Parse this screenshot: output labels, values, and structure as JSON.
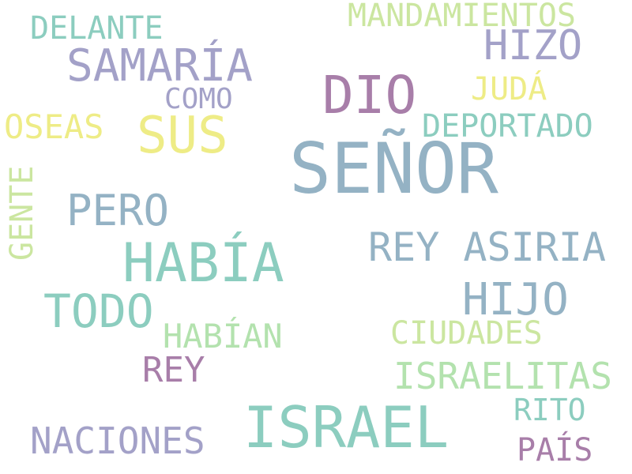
{
  "words": {
    "senor": "SEÑOR",
    "israel": "ISRAEL",
    "habia": "HABÍA",
    "dio": "DIO",
    "samaria": "SAMARÍA",
    "sus": "SUS",
    "todo": "TODO",
    "hijo": "HIJO",
    "pero": "PERO",
    "rey_asiria": "REY ASIRIA",
    "hizo": "HIZO",
    "nanciones": "NACIONES",
    "israelitas": "ISRAELITAS",
    "mandamientos": "MANDAMIENTOS",
    "delante": "DELANTE",
    "deportado": "DEPORTADO",
    "oseas": "OSEAS",
    "habian": "HABÍAN",
    "ciudades": "CIUDADES",
    "rey": "REY",
    "juda": "JUDÁ",
    "como": "COMO",
    "gente": "GENTE",
    "rito": "RITO",
    "pais": "PAÍS"
  },
  "colors": {
    "blue": "#94b2c4",
    "teal": "#8ccdbf",
    "purple": "#a87ea9",
    "lavender": "#a3a1c8",
    "yellow": "#eeec86",
    "lime": "#cbe6a0",
    "green": "#b3e2ae"
  }
}
